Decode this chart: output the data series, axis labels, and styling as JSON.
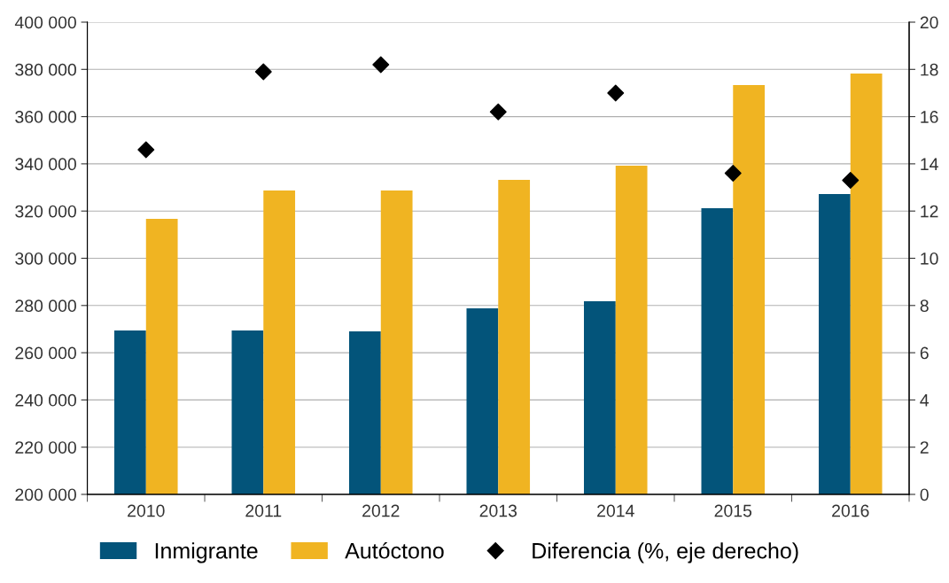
{
  "chart_data": {
    "type": "bar",
    "categories": [
      "2010",
      "2011",
      "2012",
      "2013",
      "2014",
      "2015",
      "2016"
    ],
    "series": [
      {
        "name": "Inmigrante",
        "color": "#03547a",
        "values": [
          269400,
          269400,
          269000,
          278800,
          281800,
          321200,
          327200
        ]
      },
      {
        "name": "Autóctono",
        "color": "#f0b422",
        "values": [
          316700,
          328700,
          328700,
          333200,
          339200,
          373400,
          378200
        ]
      },
      {
        "name": "Diferencia (%, eje derecho)",
        "type": "scatter",
        "axis": "y2",
        "color": "#000000",
        "marker": "diamond",
        "values": [
          14.6,
          17.9,
          18.2,
          16.2,
          17.0,
          13.6,
          13.3
        ]
      }
    ],
    "ylim": [
      200000,
      400000
    ],
    "yticks": [
      {
        "value": 200000,
        "label": "200 000"
      },
      {
        "value": 220000,
        "label": "220 000"
      },
      {
        "value": 240000,
        "label": "240 000"
      },
      {
        "value": 260000,
        "label": "260 000"
      },
      {
        "value": 280000,
        "label": "280 000"
      },
      {
        "value": 300000,
        "label": "300 000"
      },
      {
        "value": 320000,
        "label": "320 000"
      },
      {
        "value": 340000,
        "label": "340 000"
      },
      {
        "value": 360000,
        "label": "360 000"
      },
      {
        "value": 380000,
        "label": "380 000"
      },
      {
        "value": 400000,
        "label": "400 000"
      }
    ],
    "y2lim": [
      0,
      20
    ],
    "y2ticks": [
      0,
      2,
      4,
      6,
      8,
      10,
      12,
      14,
      16,
      18,
      20
    ],
    "grid": "y",
    "legend": "bottom left"
  }
}
